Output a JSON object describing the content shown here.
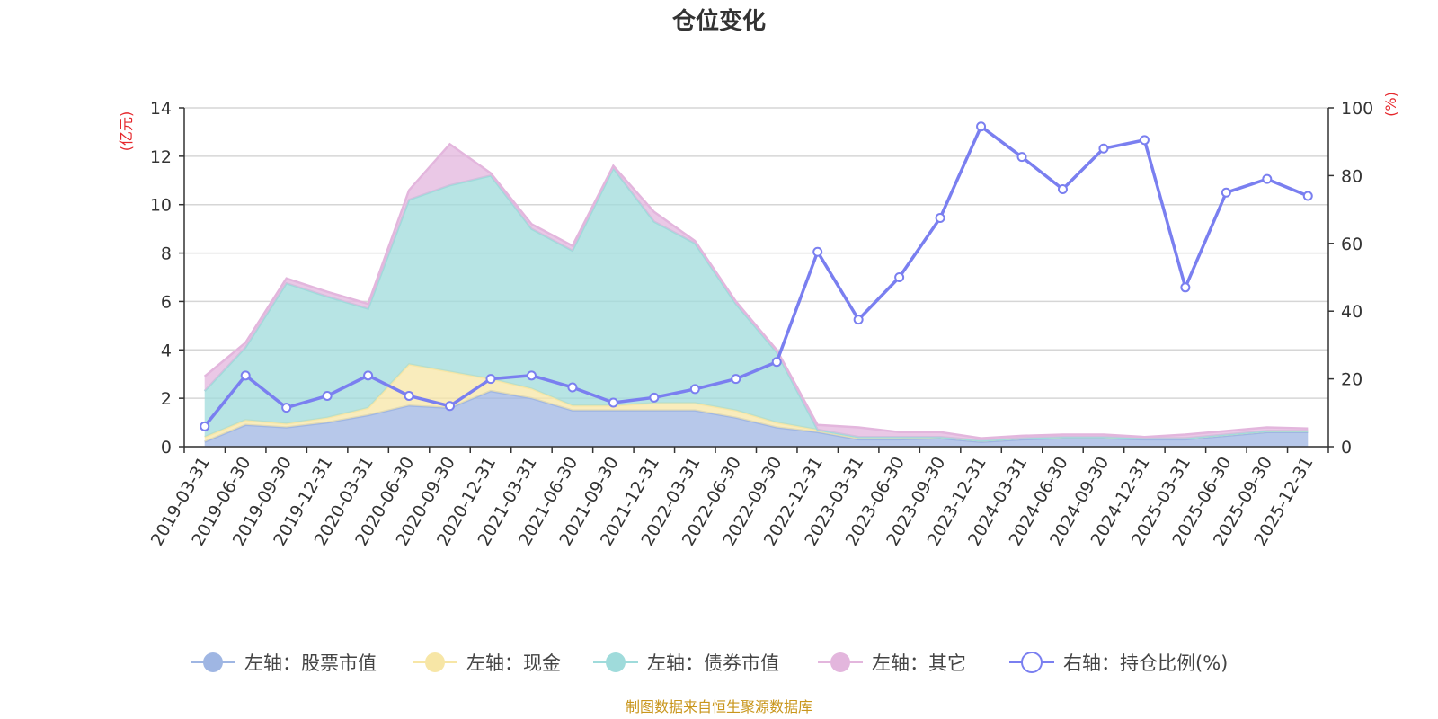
{
  "chart_data": {
    "type": "area",
    "title": "仓位变化",
    "source": "制图数据来自恒生聚源数据库",
    "left_axis": {
      "unit": "(亿元)",
      "ticks": [
        "0",
        "2",
        "4",
        "6",
        "8",
        "10",
        "12",
        "14"
      ],
      "ylim": [
        0,
        14
      ]
    },
    "right_axis": {
      "unit": "(%)",
      "ticks": [
        "0",
        "20",
        "40",
        "60",
        "80",
        "100"
      ],
      "ylim": [
        0,
        100
      ]
    },
    "categories": [
      "2019-03-31",
      "2019-06-30",
      "2019-09-30",
      "2019-12-31",
      "2020-03-31",
      "2020-06-30",
      "2020-09-30",
      "2020-12-31",
      "2021-03-31",
      "2021-06-30",
      "2021-09-30",
      "2021-12-31",
      "2022-03-31",
      "2022-06-30",
      "2022-09-30",
      "2022-12-31",
      "2023-03-31",
      "2023-06-30",
      "2023-09-30",
      "2023-12-31",
      "2024-03-31",
      "2024-06-30",
      "2024-09-30",
      "2024-12-31",
      "2025-03-31",
      "2025-06-30",
      "2025-09-30",
      "2025-12-31"
    ],
    "series": [
      {
        "name": "左轴：股票市值",
        "axis": "left",
        "stack": true,
        "color": "#9fb6e3",
        "values": [
          0.2,
          0.9,
          0.8,
          1.0,
          1.3,
          1.7,
          1.6,
          2.3,
          2.0,
          1.5,
          1.5,
          1.5,
          1.5,
          1.2,
          0.8,
          0.6,
          0.3,
          0.3,
          0.35,
          0.2,
          0.3,
          0.35,
          0.35,
          0.3,
          0.3,
          0.45,
          0.6,
          0.6
        ]
      },
      {
        "name": "左轴：现金",
        "axis": "left",
        "stack": true,
        "color": "#f7e6a6",
        "values": [
          0.2,
          0.2,
          0.15,
          0.2,
          0.3,
          1.7,
          1.5,
          0.5,
          0.4,
          0.2,
          0.2,
          0.3,
          0.3,
          0.3,
          0.2,
          0.1,
          0.1,
          0.1,
          0.05,
          0.05,
          0.05,
          0.05,
          0.05,
          0.05,
          0.05,
          0.05,
          0.05,
          0.05
        ]
      },
      {
        "name": "左轴：债券市值",
        "axis": "left",
        "stack": true,
        "color": "#9fdbdb",
        "values": [
          1.9,
          3.0,
          5.8,
          5.0,
          4.1,
          6.8,
          7.7,
          8.4,
          6.6,
          6.4,
          9.8,
          7.5,
          6.6,
          4.4,
          2.9,
          0.0,
          0.0,
          0.0,
          0.0,
          0.0,
          0.0,
          0.0,
          0.0,
          0.0,
          0.0,
          0.0,
          0.0,
          0.0
        ]
      },
      {
        "name": "左轴：其它",
        "axis": "left",
        "stack": true,
        "color": "#e3b6dd",
        "values": [
          0.6,
          0.2,
          0.2,
          0.2,
          0.2,
          0.4,
          1.7,
          0.1,
          0.2,
          0.2,
          0.1,
          0.4,
          0.1,
          0.1,
          0.1,
          0.2,
          0.4,
          0.2,
          0.2,
          0.1,
          0.1,
          0.1,
          0.1,
          0.05,
          0.15,
          0.15,
          0.15,
          0.1
        ]
      },
      {
        "name": "右轴：持仓比例(%)",
        "axis": "right",
        "stack": false,
        "color": "#7a7ff0",
        "values": [
          6,
          21,
          11.5,
          15,
          21,
          15,
          12,
          20,
          21,
          17.5,
          13,
          14.5,
          17,
          20,
          25,
          57.5,
          37.5,
          50,
          67.5,
          94.5,
          85.5,
          76,
          88,
          90.5,
          47,
          75,
          79,
          74
        ]
      }
    ]
  }
}
